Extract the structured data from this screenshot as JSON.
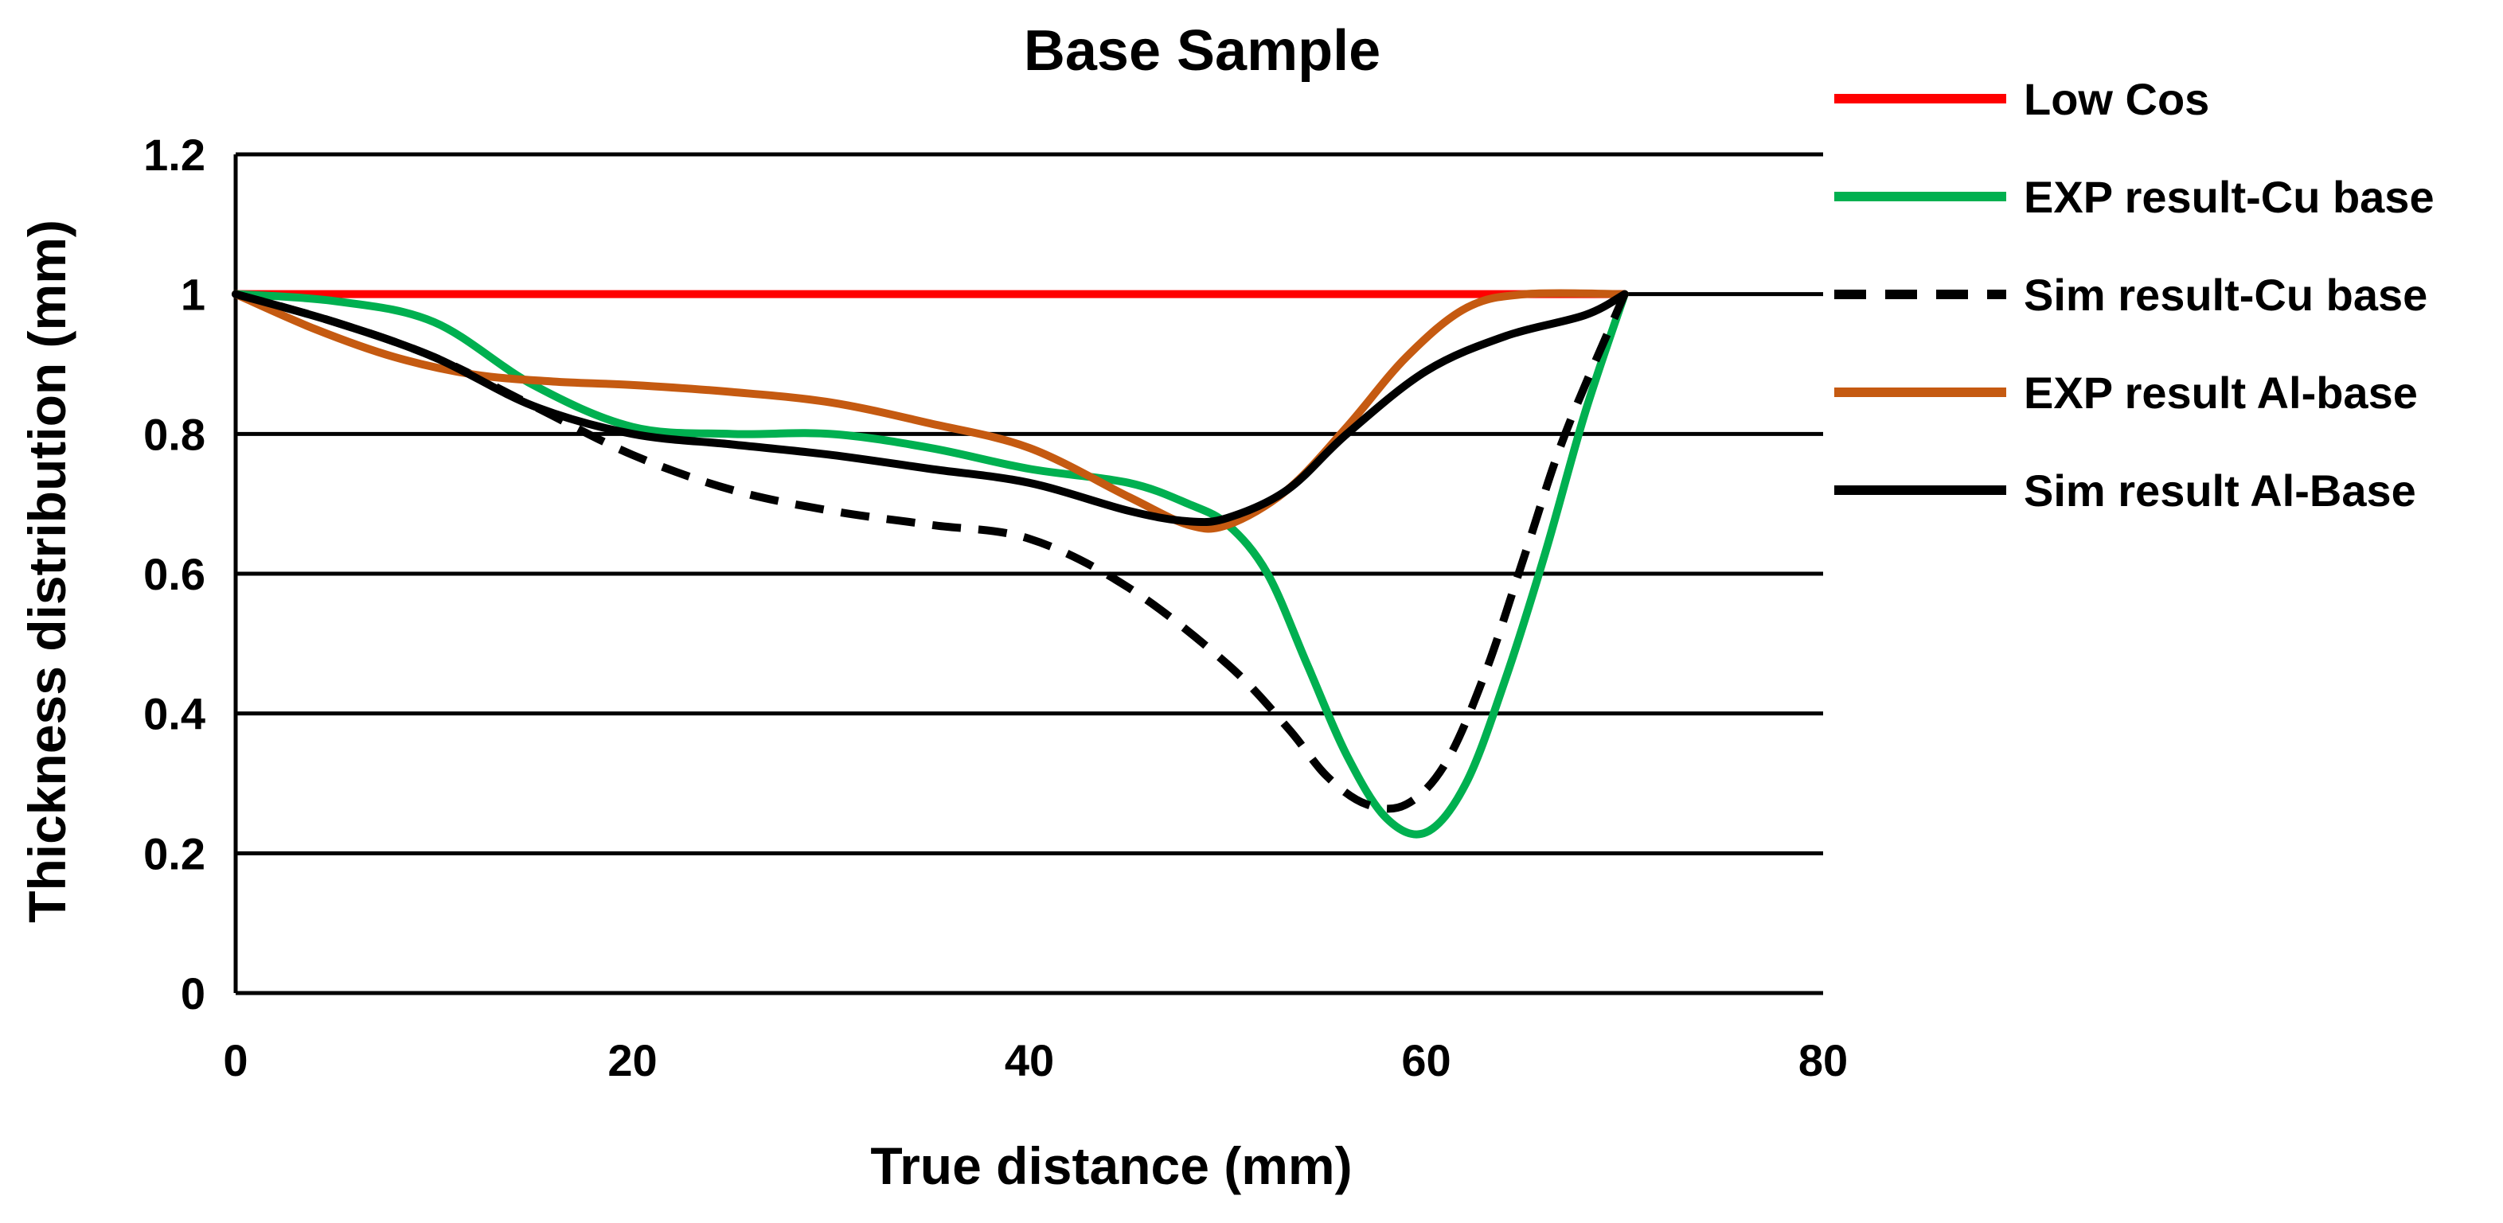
{
  "chart_data": {
    "type": "line",
    "title": "Base Sample",
    "xlabel": "True distance (mm)",
    "ylabel": "Thickness distribution (mm)",
    "xlim": [
      0,
      80
    ],
    "ylim": [
      0,
      1.2
    ],
    "xticks": [
      0,
      20,
      40,
      60,
      80
    ],
    "xtick_labels": [
      "0",
      "20",
      "40",
      "60",
      "80"
    ],
    "yticks": [
      0,
      0.2,
      0.4,
      0.6,
      0.8,
      1,
      1.2
    ],
    "ytick_labels": [
      "0",
      "0.2",
      "0.4",
      "0.6",
      "0.8",
      "1",
      "1.2"
    ],
    "grid": "horizontal",
    "legend_position": "right",
    "series": [
      {
        "name": "Low Cos",
        "color": "#ff0000",
        "style": "solid",
        "x": [
          0,
          70
        ],
        "y": [
          1.0,
          1.0
        ]
      },
      {
        "name": "EXP result-Cu base",
        "color": "#00b050",
        "style": "solid",
        "x": [
          0,
          5,
          10,
          15,
          20,
          25,
          30,
          35,
          40,
          45,
          48,
          50,
          52,
          54,
          56,
          58,
          60,
          62,
          64,
          66,
          68,
          70
        ],
        "y": [
          1.0,
          0.99,
          0.96,
          0.87,
          0.81,
          0.8,
          0.8,
          0.78,
          0.75,
          0.73,
          0.7,
          0.67,
          0.6,
          0.47,
          0.34,
          0.25,
          0.23,
          0.3,
          0.45,
          0.63,
          0.83,
          1.0
        ]
      },
      {
        "name": "Sim result-Cu base",
        "color": "#000000",
        "style": "dashed",
        "x": [
          0,
          5,
          10,
          15,
          20,
          25,
          30,
          35,
          40,
          45,
          50,
          53,
          55,
          57,
          59,
          61,
          63,
          65,
          67,
          70
        ],
        "y": [
          1.0,
          0.96,
          0.91,
          0.84,
          0.77,
          0.72,
          0.69,
          0.67,
          0.65,
          0.58,
          0.47,
          0.38,
          0.31,
          0.27,
          0.27,
          0.33,
          0.46,
          0.63,
          0.8,
          1.0
        ]
      },
      {
        "name": "EXP result Al-base",
        "color": "#c55a11",
        "style": "solid",
        "x": [
          0,
          4,
          8,
          12,
          16,
          20,
          25,
          30,
          35,
          40,
          45,
          48,
          50,
          53,
          56,
          59,
          62,
          65,
          70
        ],
        "y": [
          1.0,
          0.95,
          0.91,
          0.885,
          0.875,
          0.87,
          0.86,
          0.845,
          0.815,
          0.78,
          0.71,
          0.67,
          0.67,
          0.72,
          0.81,
          0.91,
          0.98,
          1.0,
          1.0
        ]
      },
      {
        "name": "Sim result Al-Base",
        "color": "#000000",
        "style": "solid",
        "x": [
          0,
          5,
          10,
          15,
          20,
          25,
          30,
          35,
          40,
          45,
          48,
          50,
          53,
          56,
          60,
          64,
          68,
          70
        ],
        "y": [
          1.0,
          0.96,
          0.91,
          0.84,
          0.8,
          0.785,
          0.77,
          0.75,
          0.73,
          0.69,
          0.675,
          0.68,
          0.72,
          0.8,
          0.89,
          0.94,
          0.97,
          1.0
        ]
      }
    ]
  }
}
